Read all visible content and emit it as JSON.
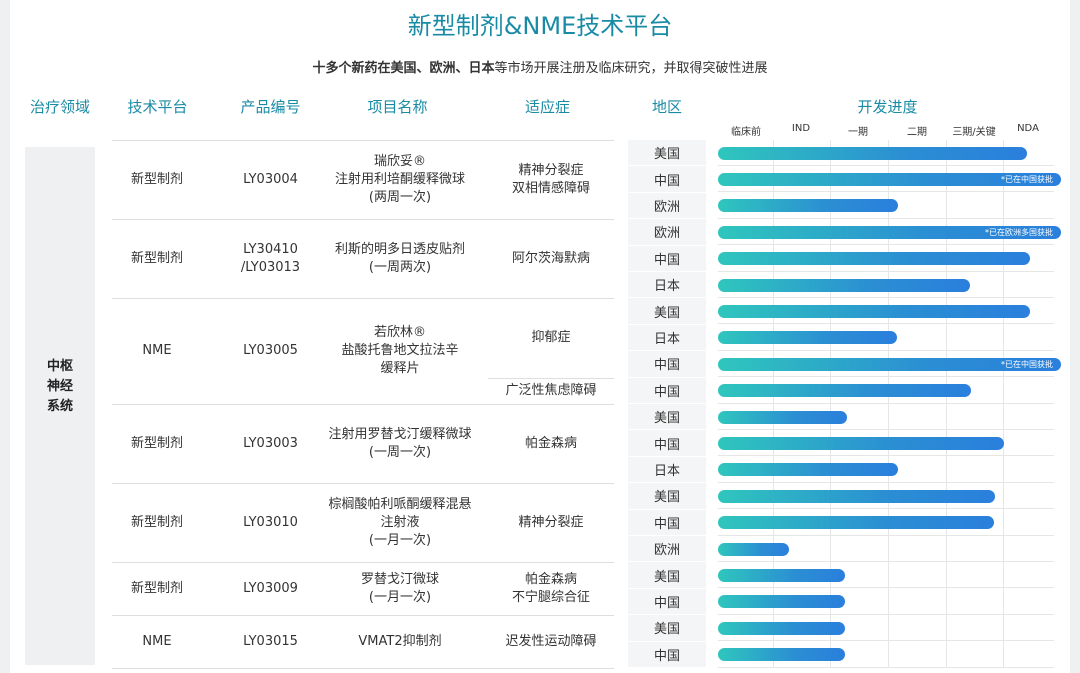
{
  "title": "新型制剂&NME技术平台",
  "subtitle": {
    "bold": "十多个新药在美国、欧洲、日本",
    "rest": "等市场开展注册及临床研究，并取得突破性进展"
  },
  "headers": {
    "area": "治疗领域",
    "platform": "技术平台",
    "code": "产品编号",
    "name": "项目名称",
    "indication": "适应症",
    "region": "地区",
    "progress": "开发进度"
  },
  "therapeutic_area": {
    "label": "中枢神经系统",
    "lines": [
      "中枢",
      "神经",
      "系统"
    ]
  },
  "colors": {
    "accent": "#1a8ba5",
    "bar_start": "#2fc6bd",
    "bar_end": "#2a7fdc"
  },
  "chart_data": {
    "type": "bar",
    "orientation": "horizontal",
    "stages": [
      "临床前",
      "IND",
      "一期",
      "二期",
      "三期/关键",
      "NDA"
    ],
    "xlim": [
      0,
      6
    ],
    "projects": [
      {
        "platform": "新型制剂",
        "code": "LY03004",
        "name": [
          "瑞欣妥®",
          "注射用利培酮缓释微球",
          "(两周一次)"
        ],
        "indications": [
          {
            "text": [
              "精神分裂症",
              "双相情感障碍"
            ],
            "rows": 3
          }
        ],
        "rows": [
          {
            "region": "美国",
            "value": 5.4
          },
          {
            "region": "中国",
            "value": 6.0,
            "note": "*已在中国获批"
          },
          {
            "region": "欧洲",
            "value": 3.15
          }
        ]
      },
      {
        "platform": "新型制剂",
        "code": "LY30410\n/LY03013",
        "name": [
          "利斯的明多日透皮贴剂",
          "(一周两次)"
        ],
        "indications": [
          {
            "text": [
              "阿尔茨海默病"
            ],
            "rows": 3
          }
        ],
        "rows": [
          {
            "region": "欧洲",
            "value": 6.0,
            "note": "*已在欧洲多国获批"
          },
          {
            "region": "中国",
            "value": 5.45
          },
          {
            "region": "日本",
            "value": 4.4
          }
        ]
      },
      {
        "platform": "NME",
        "code": "LY03005",
        "name": [
          "若欣林®",
          "盐酸托鲁地文拉法辛",
          "缓释片"
        ],
        "indications": [
          {
            "text": [
              "抑郁症"
            ],
            "rows": 3
          },
          {
            "text": [
              "广泛性焦虑障碍"
            ],
            "rows": 1
          }
        ],
        "rows": [
          {
            "region": "美国",
            "value": 5.45
          },
          {
            "region": "日本",
            "value": 3.13
          },
          {
            "region": "中国",
            "value": 6.0,
            "note": "*已在中国获批"
          },
          {
            "region": "中国",
            "value": 4.42
          }
        ]
      },
      {
        "platform": "新型制剂",
        "code": "LY03003",
        "name": [
          "注射用罗替戈汀缓释微球",
          "(一周一次)"
        ],
        "indications": [
          {
            "text": [
              "帕金森病"
            ],
            "rows": 3
          }
        ],
        "rows": [
          {
            "region": "美国",
            "value": 2.25
          },
          {
            "region": "中国",
            "value": 5.0
          },
          {
            "region": "日本",
            "value": 3.15
          }
        ]
      },
      {
        "platform": "新型制剂",
        "code": "LY03010",
        "name": [
          "棕榈酸帕利哌酮缓释混悬",
          "注射液",
          "(一月一次)"
        ],
        "indications": [
          {
            "text": [
              "精神分裂症"
            ],
            "rows": 3
          }
        ],
        "rows": [
          {
            "region": "美国",
            "value": 4.85
          },
          {
            "region": "中国",
            "value": 4.83
          },
          {
            "region": "欧洲",
            "value": 1.25
          }
        ]
      },
      {
        "platform": "新型制剂",
        "code": "LY03009",
        "name": [
          "罗替戈汀微球",
          "(一月一次)"
        ],
        "indications": [
          {
            "text": [
              "帕金森病",
              "不宁腿综合征"
            ],
            "rows": 2
          }
        ],
        "rows": [
          {
            "region": "美国",
            "value": 2.22
          },
          {
            "region": "中国",
            "value": 2.22
          }
        ]
      },
      {
        "platform": "NME",
        "code": "LY03015",
        "name": [
          "VMAT2抑制剂"
        ],
        "indications": [
          {
            "text": [
              "迟发性运动障碍"
            ],
            "rows": 2
          }
        ],
        "rows": [
          {
            "region": "美国",
            "value": 2.22
          },
          {
            "region": "中国",
            "value": 2.22
          }
        ]
      }
    ]
  }
}
